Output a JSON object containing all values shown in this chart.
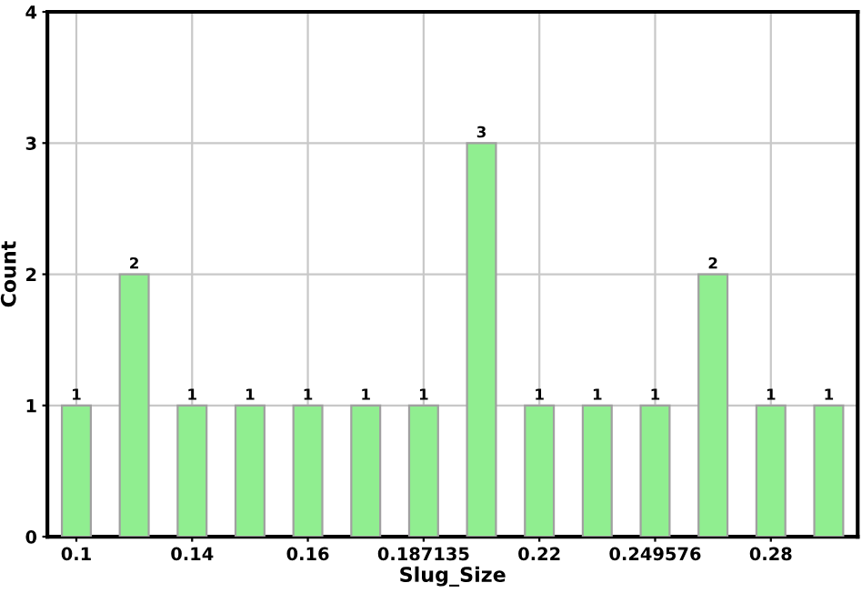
{
  "chart_data": {
    "type": "bar",
    "xlabel": "Slug_Size",
    "ylabel": "Count",
    "categories": [
      "0.1",
      null,
      "0.14",
      null,
      "0.16",
      null,
      "0.187135",
      null,
      "0.22",
      null,
      "0.249576",
      null,
      "0.28",
      null
    ],
    "values": [
      1,
      2,
      1,
      1,
      1,
      1,
      1,
      3,
      1,
      1,
      1,
      2,
      1,
      1
    ],
    "color": "#90ee90",
    "ylim": [
      0,
      4
    ],
    "yticks": [
      0,
      1,
      2,
      3,
      4
    ],
    "grid": true,
    "data_labels": true
  }
}
